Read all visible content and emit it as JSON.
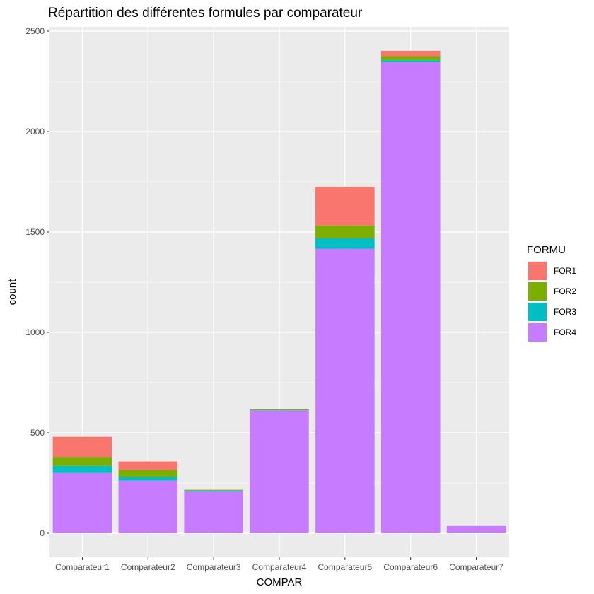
{
  "chart_data": {
    "type": "bar",
    "stacked": true,
    "title": "Répartition des différentes formules par comparateur",
    "xlabel": "COMPAR",
    "ylabel": "count",
    "ylim": [
      0,
      2500
    ],
    "y_ticks": [
      0,
      500,
      1000,
      1500,
      2000,
      2500
    ],
    "categories": [
      "Comparateur1",
      "Comparateur2",
      "Comparateur3",
      "Comparateur4",
      "Comparateur5",
      "Comparateur6",
      "Comparateur7"
    ],
    "legend": {
      "title": "FORMU",
      "placement": "right"
    },
    "grid": true,
    "series": [
      {
        "name": "FOR1",
        "color": "#F8766D",
        "values": [
          100,
          42,
          0,
          0,
          193,
          27,
          0
        ]
      },
      {
        "name": "FOR2",
        "color": "#7CAE00",
        "values": [
          45,
          35,
          4,
          4,
          63,
          20,
          0
        ]
      },
      {
        "name": "FOR3",
        "color": "#00BFC4",
        "values": [
          35,
          18,
          4,
          2,
          52,
          10,
          0
        ]
      },
      {
        "name": "FOR4",
        "color": "#C77CFF",
        "values": [
          300,
          262,
          208,
          610,
          1417,
          2345,
          36
        ]
      }
    ]
  }
}
